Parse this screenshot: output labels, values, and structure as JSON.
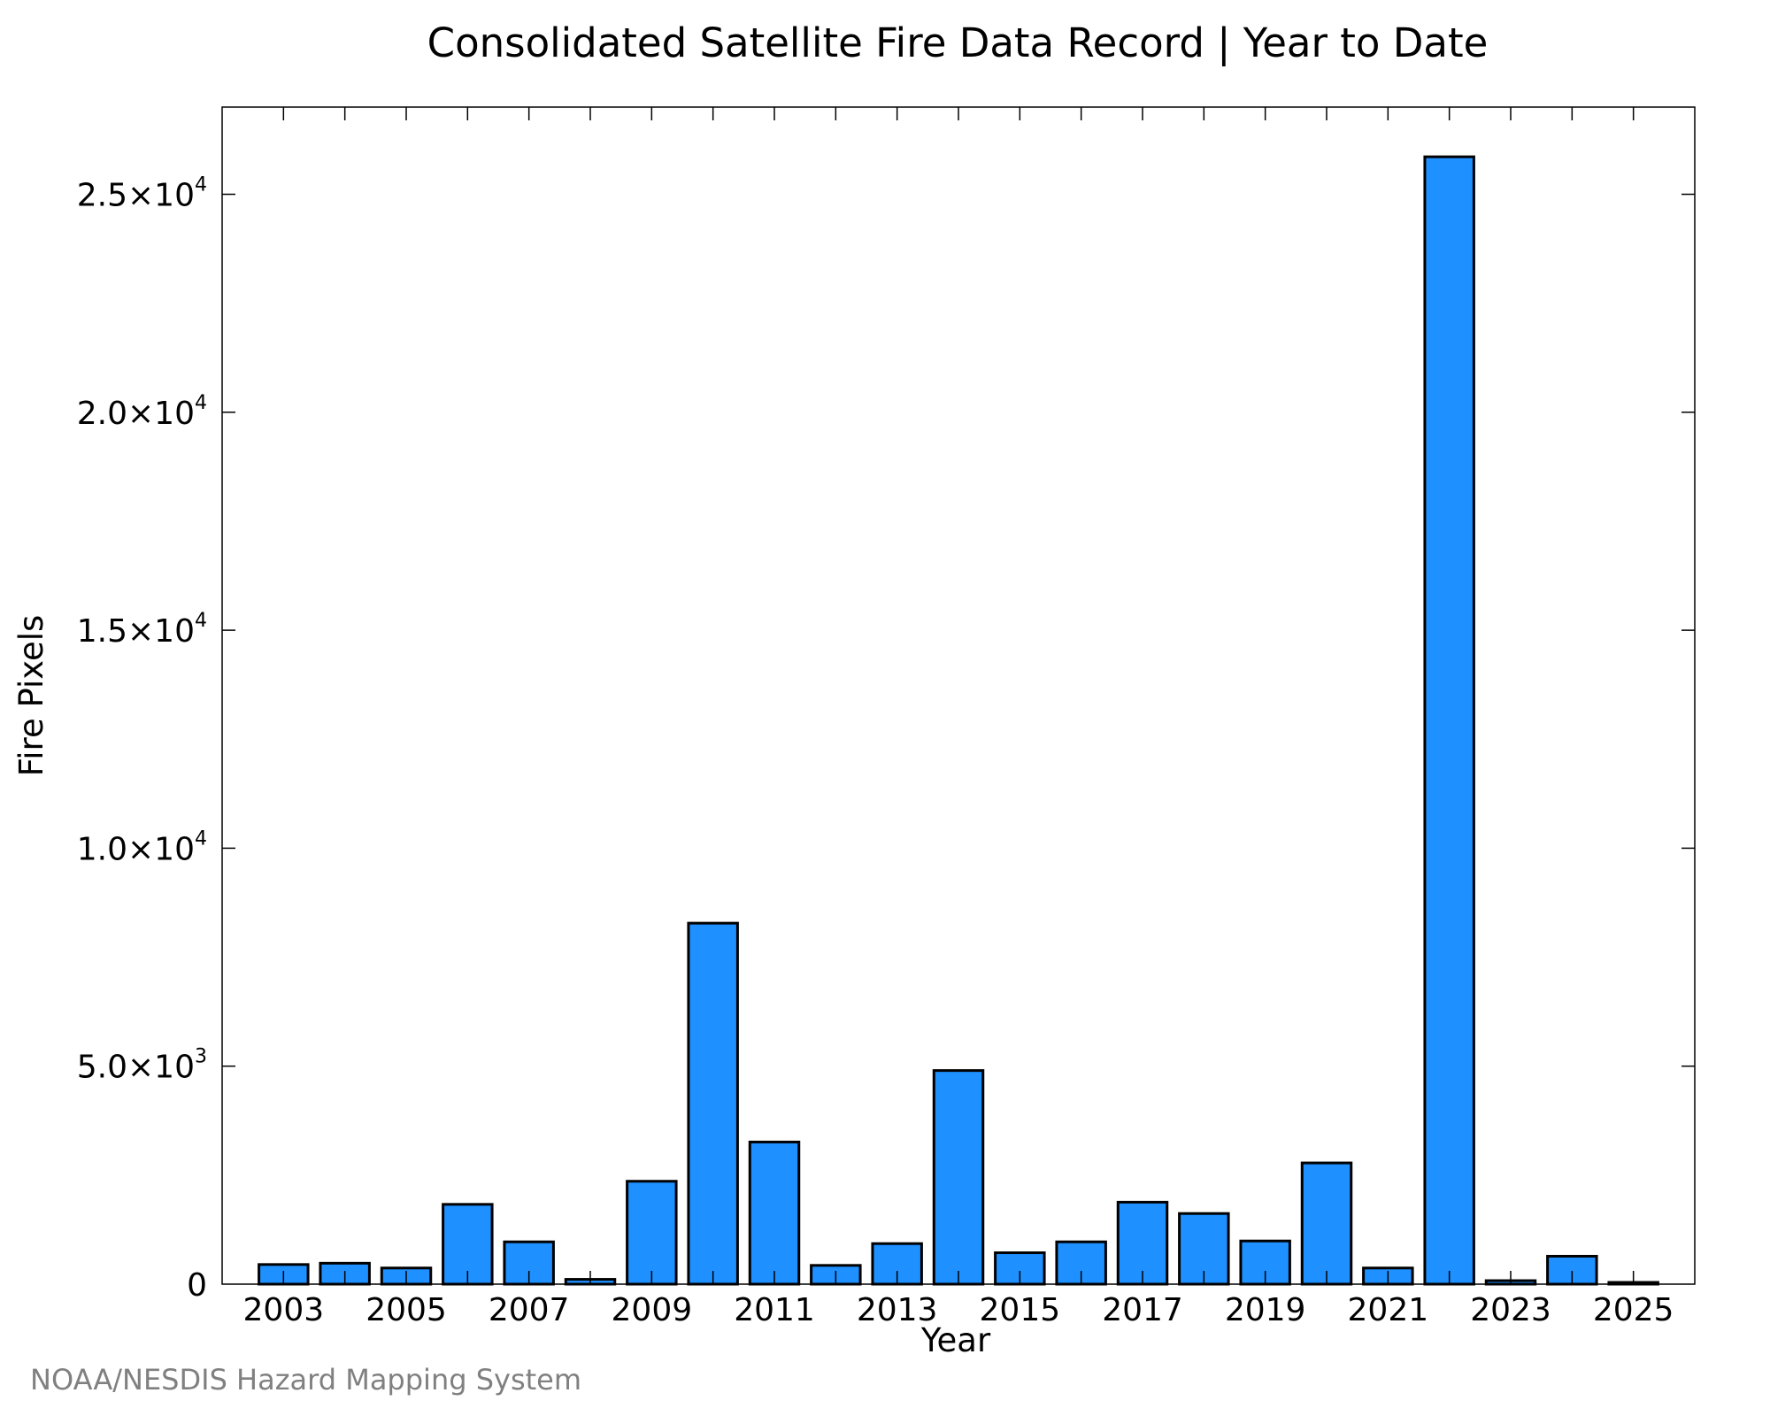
{
  "chart_data": {
    "type": "bar",
    "title": "Consolidated Satellite Fire Data Record | Year to Date",
    "xlabel": "Year",
    "ylabel": "Fire Pixels",
    "source": "NOAA/NESDIS Hazard Mapping System",
    "categories": [
      "2003",
      "2004",
      "2005",
      "2006",
      "2007",
      "2008",
      "2009",
      "2010",
      "2011",
      "2012",
      "2013",
      "2014",
      "2015",
      "2016",
      "2017",
      "2018",
      "2019",
      "2020",
      "2021",
      "2022",
      "2023",
      "2024",
      "2025"
    ],
    "values": [
      450,
      480,
      370,
      1830,
      970,
      110,
      2360,
      8280,
      3260,
      430,
      930,
      4900,
      720,
      970,
      1880,
      1620,
      990,
      2780,
      370,
      25860,
      80,
      640,
      40
    ],
    "xlim": [
      2002,
      2026
    ],
    "ylim": [
      0,
      27000
    ],
    "x_ticks": [
      2003,
      2005,
      2007,
      2009,
      2011,
      2013,
      2015,
      2017,
      2019,
      2021,
      2023,
      2025
    ],
    "x_tick_labels": [
      "2003",
      "2005",
      "2007",
      "2009",
      "2011",
      "2013",
      "2015",
      "2017",
      "2019",
      "2021",
      "2023",
      "2025"
    ],
    "y_ticks": [
      {
        "value": 0,
        "label": "0",
        "mantissa": "",
        "exponent": ""
      },
      {
        "value": 5000,
        "label": "5.0×10³",
        "mantissa": "5.0×10",
        "exponent": "3"
      },
      {
        "value": 10000,
        "label": "1.0×10⁴",
        "mantissa": "1.0×10",
        "exponent": "4"
      },
      {
        "value": 15000,
        "label": "1.5×10⁴",
        "mantissa": "1.5×10",
        "exponent": "4"
      },
      {
        "value": 20000,
        "label": "2.0×10⁴",
        "mantissa": "2.0×10",
        "exponent": "4"
      },
      {
        "value": 25000,
        "label": "2.5×10⁴",
        "mantissa": "2.5×10",
        "exponent": "4"
      }
    ],
    "grid": false,
    "legend": "none",
    "bar_color": "#1e90ff",
    "bar_edge_color": "#000000"
  }
}
